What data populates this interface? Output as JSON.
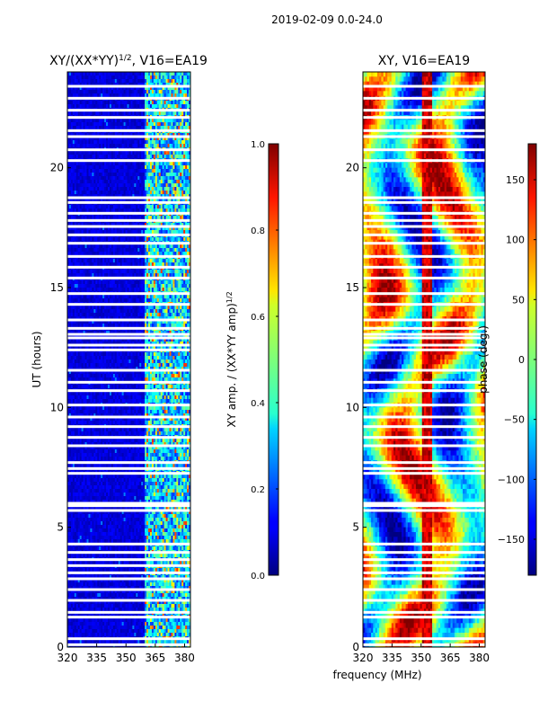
{
  "figure": {
    "suptitle": "2019-02-09 0.0-24.0",
    "shared_xlabel": "frequency (MHz)"
  },
  "chart_data": [
    {
      "type": "heatmap",
      "title": "XY/(XX*YY)^1/2, V16=EA19",
      "title_main": "XY/(XX*YY)",
      "title_sup": "1/2",
      "title_tail": ", V16=EA19",
      "xlabel": "frequency (MHz)",
      "ylabel": "UT (hours)",
      "xlim": [
        320,
        383
      ],
      "ylim": [
        0,
        24
      ],
      "xticks": [
        320,
        335,
        350,
        365,
        380
      ],
      "yticks": [
        0,
        5,
        10,
        15,
        20
      ],
      "colorbar": {
        "label_main": "XY amp. / (XX*YY amp)",
        "label_sup": "1/2",
        "range": [
          0.0,
          1.0
        ],
        "ticks": [
          "0.0",
          "0.2",
          "0.4",
          "0.6",
          "0.8",
          "1.0"
        ],
        "tick_values": [
          0.0,
          0.2,
          0.4,
          0.6,
          0.8,
          1.0
        ],
        "colormap": "jet"
      },
      "description_values": {
        "background_level": 0.05,
        "rfi_band_mhz": [
          360,
          381
        ],
        "rfi_band_level": 0.35
      }
    },
    {
      "type": "heatmap",
      "title": "XY, V16=EA19",
      "xlabel": "frequency (MHz)",
      "ylabel": "",
      "xlim": [
        320,
        383
      ],
      "ylim": [
        0,
        24
      ],
      "xticks": [
        320,
        335,
        350,
        365,
        380
      ],
      "yticks": [
        0,
        5,
        10,
        15,
        20
      ],
      "colorbar": {
        "label": "phase (deg.)",
        "range": [
          -180,
          180
        ],
        "ticks": [
          "−150",
          "−100",
          "−50",
          "0",
          "50",
          "100",
          "150"
        ],
        "tick_values": [
          -150,
          -100,
          -50,
          0,
          50,
          100,
          150
        ],
        "colormap": "jet"
      }
    }
  ],
  "flagged_hours": [
    0.1,
    0.35,
    1.25,
    1.45,
    1.95,
    2.4,
    2.85,
    3.1,
    3.4,
    3.65,
    3.95,
    4.3,
    5.7,
    5.9,
    6.0,
    7.25,
    7.45,
    7.7,
    8.4,
    8.75,
    9.2,
    9.6,
    10.1,
    10.7,
    11.05,
    11.55,
    12.4,
    12.6,
    12.9,
    13.05,
    13.3,
    13.65,
    14.3,
    14.75,
    15.4,
    15.85,
    16.3,
    16.85,
    17.2,
    17.55,
    17.8,
    18.1,
    18.55,
    18.75,
    20.3,
    20.75,
    21.3,
    21.55,
    22.1,
    22.4,
    22.9,
    23.4
  ]
}
